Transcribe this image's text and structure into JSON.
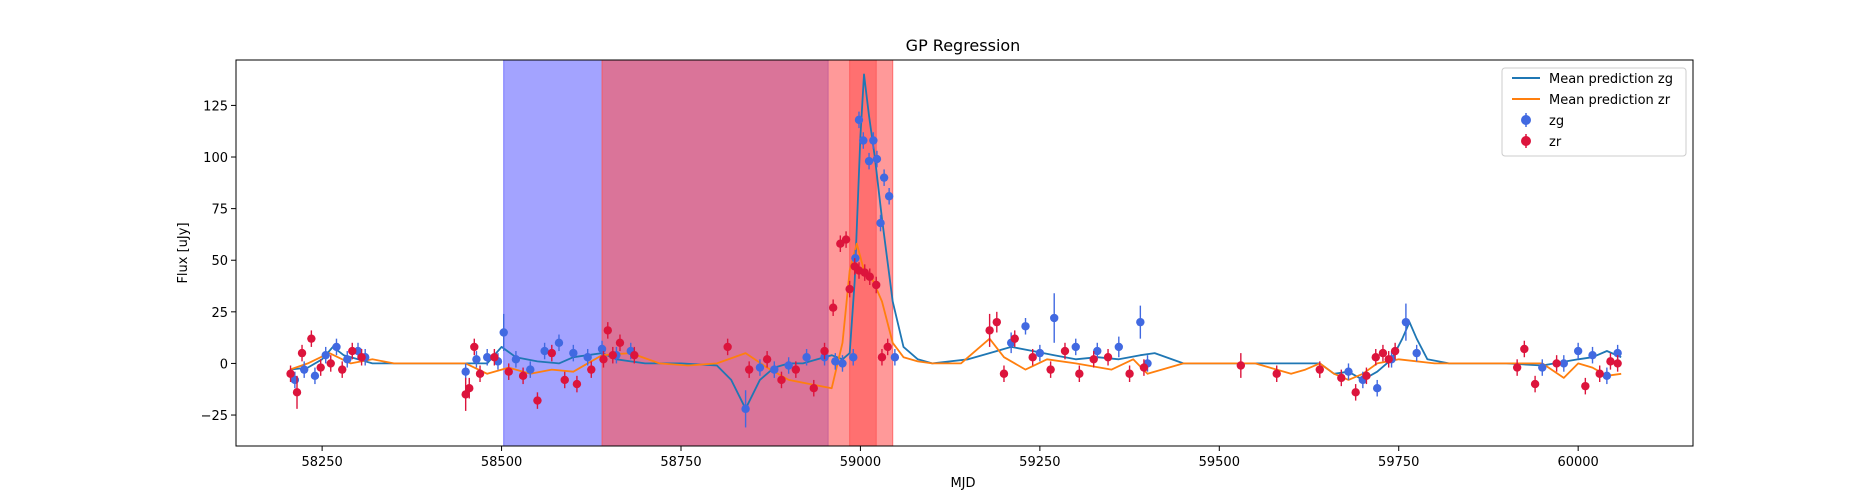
{
  "chart_data": {
    "type": "scatter",
    "title": "GP Regression",
    "xlabel": "MJD",
    "ylabel": "Flux [uJy]",
    "xlim": [
      58130,
      60160
    ],
    "ylim": [
      -40,
      147
    ],
    "xticks": [
      58250,
      58500,
      58750,
      59000,
      59250,
      59500,
      59750,
      60000
    ],
    "yticks": [
      -25,
      0,
      25,
      50,
      75,
      100,
      125
    ],
    "legend_position": "top-right",
    "legend": [
      "Mean prediction zg",
      "Mean prediction zr",
      "zg",
      "zr"
    ],
    "colors": {
      "zg_line": "#1f77b4",
      "zr_line": "#ff7f0e",
      "zg_points": "#4169e1",
      "zr_points": "#dc143c",
      "blue_band": "#6666ff",
      "red_band": "#ff5555"
    },
    "shaded_regions": [
      {
        "x0": 58503,
        "x1": 58955,
        "band": "zg"
      },
      {
        "x0": 58640,
        "x1": 59045,
        "band": "zr"
      },
      {
        "x0": 58985,
        "x1": 59022,
        "band": "zr"
      }
    ],
    "series": [
      {
        "name": "Mean prediction zg",
        "kind": "line",
        "x": [
          58205,
          58230,
          58250,
          58265,
          58280,
          58300,
          58320,
          58350,
          58400,
          58450,
          58480,
          58500,
          58520,
          58550,
          58580,
          58600,
          58640,
          58660,
          58700,
          58750,
          58800,
          58820,
          58840,
          58860,
          58880,
          58900,
          58920,
          58940,
          58960,
          58975,
          58985,
          58992,
          59000,
          59005,
          59012,
          59020,
          59030,
          59045,
          59060,
          59080,
          59100,
          59150,
          59180,
          59210,
          59240,
          59270,
          59300,
          59330,
          59360,
          59390,
          59410,
          59450,
          59500,
          59550,
          59600,
          59640,
          59660,
          59680,
          59700,
          59720,
          59740,
          59755,
          59765,
          59775,
          59790,
          59820,
          59900,
          59950,
          60000,
          60020,
          60040,
          60060
        ],
        "y": [
          -3,
          -2,
          2,
          8,
          4,
          2,
          0,
          0,
          0,
          0,
          0,
          8,
          3,
          1,
          0,
          3,
          5,
          2,
          0,
          0,
          -1,
          -8,
          -22,
          -8,
          -2,
          0,
          0,
          2,
          4,
          2,
          5,
          40,
          110,
          140,
          120,
          100,
          70,
          30,
          8,
          2,
          0,
          2,
          5,
          8,
          6,
          4,
          2,
          3,
          2,
          4,
          5,
          0,
          0,
          0,
          0,
          0,
          -5,
          -4,
          -8,
          -4,
          2,
          12,
          20,
          12,
          2,
          0,
          0,
          -1,
          2,
          3,
          6,
          3
        ]
      },
      {
        "name": "Mean prediction zr",
        "kind": "line",
        "x": [
          58205,
          58230,
          58260,
          58290,
          58320,
          58350,
          58400,
          58450,
          58480,
          58510,
          58540,
          58570,
          58600,
          58640,
          58680,
          58720,
          58760,
          58800,
          58840,
          58870,
          58900,
          58930,
          58960,
          58975,
          58985,
          58995,
          59005,
          59015,
          59030,
          59045,
          59060,
          59080,
          59100,
          59140,
          59180,
          59200,
          59230,
          59260,
          59300,
          59350,
          59380,
          59400,
          59450,
          59500,
          59550,
          59600,
          59620,
          59640,
          59660,
          59680,
          59700,
          59720,
          59750,
          59800,
          59850,
          59900,
          59950,
          59980,
          60000,
          60020,
          60040,
          60060
        ],
        "y": [
          -3,
          0,
          5,
          0,
          2,
          0,
          0,
          0,
          -5,
          -2,
          -5,
          -3,
          -4,
          4,
          5,
          0,
          -1,
          0,
          5,
          -2,
          -8,
          -10,
          -12,
          10,
          45,
          58,
          45,
          42,
          30,
          10,
          3,
          1,
          0,
          0,
          12,
          3,
          -3,
          2,
          0,
          -3,
          2,
          -5,
          0,
          0,
          0,
          -5,
          -3,
          0,
          -5,
          -8,
          -5,
          0,
          2,
          0,
          0,
          0,
          0,
          -7,
          0,
          -2,
          -6,
          -5
        ]
      },
      {
        "name": "zg",
        "kind": "points",
        "x": [
          58212,
          58225,
          58240,
          58255,
          58270,
          58285,
          58300,
          58310,
          58450,
          58465,
          58480,
          58495,
          58503,
          58520,
          58540,
          58560,
          58580,
          58600,
          58620,
          58640,
          58660,
          58680,
          58840,
          58860,
          58880,
          58900,
          58925,
          58950,
          58965,
          58975,
          58990,
          58993,
          58998,
          59004,
          59012,
          59018,
          59023,
          59028,
          59033,
          59040,
          59048,
          59210,
          59230,
          59250,
          59270,
          59300,
          59330,
          59360,
          59390,
          59400,
          59680,
          59700,
          59720,
          59740,
          59760,
          59775,
          59950,
          59980,
          60000,
          60020,
          60040,
          60055
        ],
        "y": [
          -8,
          -3,
          -6,
          4,
          8,
          2,
          6,
          3,
          -4,
          2,
          3,
          1,
          15,
          2,
          -3,
          6,
          10,
          5,
          3,
          7,
          4,
          6,
          -22,
          -2,
          -3,
          -1,
          3,
          3,
          1,
          0,
          3,
          51,
          118,
          108,
          98,
          108,
          99,
          68,
          90,
          81,
          3,
          10,
          18,
          5,
          22,
          8,
          6,
          8,
          20,
          0,
          -4,
          -8,
          -12,
          2,
          20,
          5,
          -2,
          0,
          6,
          4,
          -6,
          5
        ],
        "yerr": [
          4,
          4,
          4,
          4,
          4,
          4,
          4,
          4,
          4,
          4,
          4,
          4,
          9,
          4,
          4,
          4,
          4,
          4,
          4,
          4,
          4,
          4,
          9,
          4,
          4,
          4,
          4,
          4,
          4,
          4,
          4,
          4,
          4,
          4,
          4,
          4,
          4,
          4,
          4,
          4,
          4,
          5,
          4,
          4,
          12,
          4,
          4,
          5,
          8,
          4,
          4,
          4,
          4,
          4,
          9,
          4,
          4,
          4,
          4,
          4,
          4,
          4
        ]
      },
      {
        "name": "zr",
        "kind": "points",
        "x": [
          58206,
          58215,
          58222,
          58235,
          58248,
          58262,
          58278,
          58292,
          58305,
          58450,
          58455,
          58462,
          58470,
          58490,
          58510,
          58530,
          58550,
          58570,
          58588,
          58605,
          58625,
          58642,
          58648,
          58655,
          58665,
          58685,
          58815,
          58845,
          58870,
          58890,
          58910,
          58935,
          58950,
          58962,
          58972,
          58980,
          58985,
          58992,
          58998,
          59006,
          59013,
          59022,
          59030,
          59038,
          59180,
          59190,
          59200,
          59215,
          59240,
          59265,
          59285,
          59305,
          59325,
          59345,
          59375,
          59395,
          59530,
          59580,
          59640,
          59670,
          59690,
          59705,
          59718,
          59728,
          59736,
          59745,
          59915,
          59925,
          59940,
          59970,
          60010,
          60030,
          60045,
          60055
        ],
        "y": [
          -5,
          -14,
          5,
          12,
          -2,
          0,
          -3,
          6,
          3,
          -15,
          -12,
          8,
          -5,
          3,
          -4,
          -6,
          -18,
          5,
          -8,
          -10,
          -3,
          2,
          16,
          4,
          10,
          4,
          8,
          -3,
          2,
          -8,
          -3,
          -12,
          6,
          27,
          58,
          60,
          36,
          47,
          45,
          44,
          42,
          38,
          3,
          8,
          16,
          20,
          -5,
          12,
          3,
          -3,
          6,
          -5,
          2,
          3,
          -5,
          -2,
          -1,
          -5,
          -3,
          -7,
          -14,
          -6,
          3,
          5,
          2,
          6,
          -2,
          7,
          -10,
          0,
          -11,
          -5,
          1,
          0
        ],
        "yerr": [
          4,
          8,
          4,
          4,
          4,
          4,
          4,
          4,
          4,
          8,
          5,
          4,
          4,
          4,
          4,
          4,
          4,
          4,
          4,
          4,
          4,
          4,
          4,
          4,
          4,
          4,
          4,
          4,
          4,
          4,
          4,
          4,
          4,
          4,
          4,
          4,
          4,
          4,
          4,
          4,
          4,
          4,
          4,
          4,
          8,
          5,
          4,
          4,
          4,
          4,
          4,
          4,
          4,
          4,
          4,
          4,
          6,
          4,
          4,
          4,
          4,
          4,
          4,
          4,
          4,
          4,
          4,
          4,
          4,
          4,
          4,
          4,
          4,
          4
        ]
      }
    ]
  }
}
